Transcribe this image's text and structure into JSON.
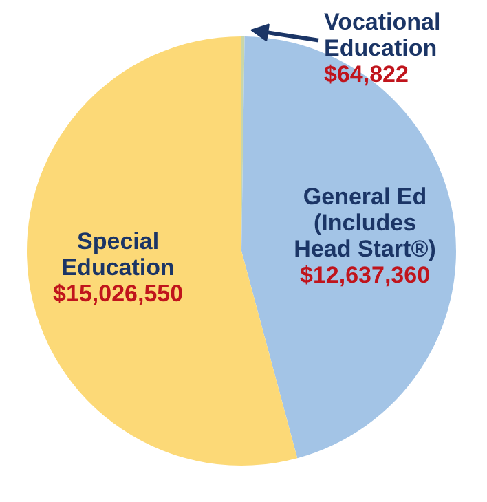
{
  "chart_data": {
    "type": "pie",
    "categories": [
      "Vocational\nEducation",
      "General Ed\n(Includes\nHead Start®)",
      "Special\nEducation"
    ],
    "values": [
      64822,
      12637360,
      15026550
    ],
    "colors": [
      "#c9d6a8",
      "#a3c4e6",
      "#fcd977"
    ],
    "value_labels": [
      "$64,822",
      "$12,637,360",
      "$15,026,550"
    ]
  }
}
